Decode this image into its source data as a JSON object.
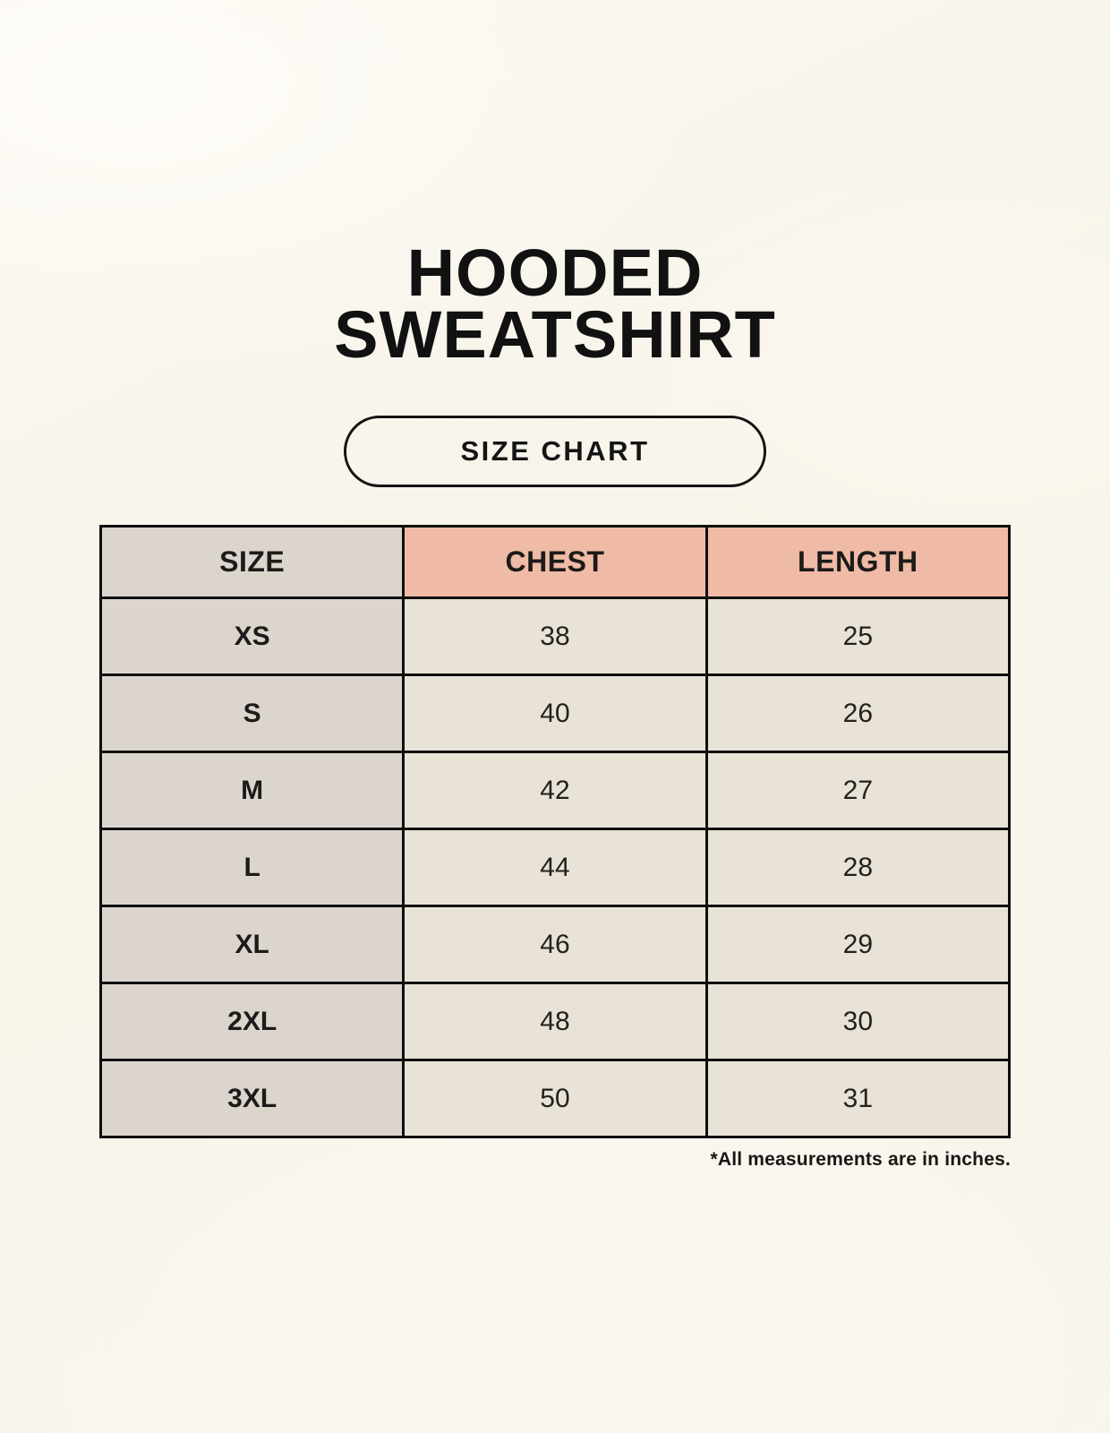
{
  "header": {
    "title_line1": "HOODED",
    "title_line2": "SWEATSHIRT"
  },
  "badge": {
    "label": "SIZE CHART"
  },
  "footnote": "*All measurements are in inches.",
  "colors": {
    "page_background": "#f9f5ed",
    "size_column_bg": "#dcd5ce",
    "header_accent_bg": "#f0bba6",
    "value_cell_bg": "#e9e2d6",
    "border": "#0f0f0f",
    "text": "#111111"
  },
  "chart_data": {
    "type": "table",
    "title": "HOODED SWEATSHIRT",
    "subtitle": "SIZE CHART",
    "columns": [
      "SIZE",
      "CHEST",
      "LENGTH"
    ],
    "rows": [
      [
        "XS",
        "38",
        "25"
      ],
      [
        "S",
        "40",
        "26"
      ],
      [
        "M",
        "42",
        "27"
      ],
      [
        "L",
        "44",
        "28"
      ],
      [
        "XL",
        "46",
        "29"
      ],
      [
        "2XL",
        "48",
        "30"
      ],
      [
        "3XL",
        "50",
        "31"
      ]
    ],
    "note": "*All measurements are in inches.",
    "units": "inches"
  }
}
